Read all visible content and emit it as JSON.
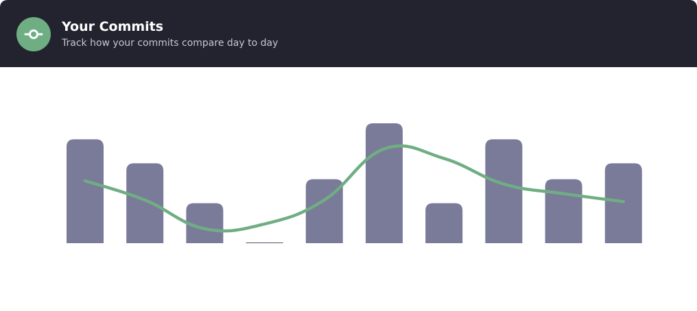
{
  "header": {
    "title": "Your Commits",
    "subtitle": "Track how your commits compare day to day",
    "icon": "git-commit-icon"
  },
  "colors": {
    "header_bg": "#23232f",
    "icon_bg": "#6fae83",
    "bar": "#7a7a99",
    "line": "#6fae83",
    "axis_text": "#f2f2f4"
  },
  "chart_data": {
    "type": "bar",
    "categories": [
      "",
      "",
      "",
      "",
      "",
      "",
      "",
      "",
      "",
      ""
    ],
    "series": [
      {
        "type": "bar",
        "values": [
          6.5,
          5,
          2.5,
          0,
          4,
          7.5,
          2.5,
          6.5,
          4,
          5
        ]
      },
      {
        "type": "line",
        "smooth": true,
        "values": [
          3.9,
          2.7,
          0.9,
          1.2,
          2.7,
          5.9,
          5.3,
          3.7,
          3.1,
          2.6
        ]
      }
    ],
    "xlabel": "",
    "ylabel": "",
    "yticks": [
      "",
      "",
      ""
    ],
    "ylim": [
      0,
      7.5
    ],
    "grid": false,
    "legend": "none"
  }
}
